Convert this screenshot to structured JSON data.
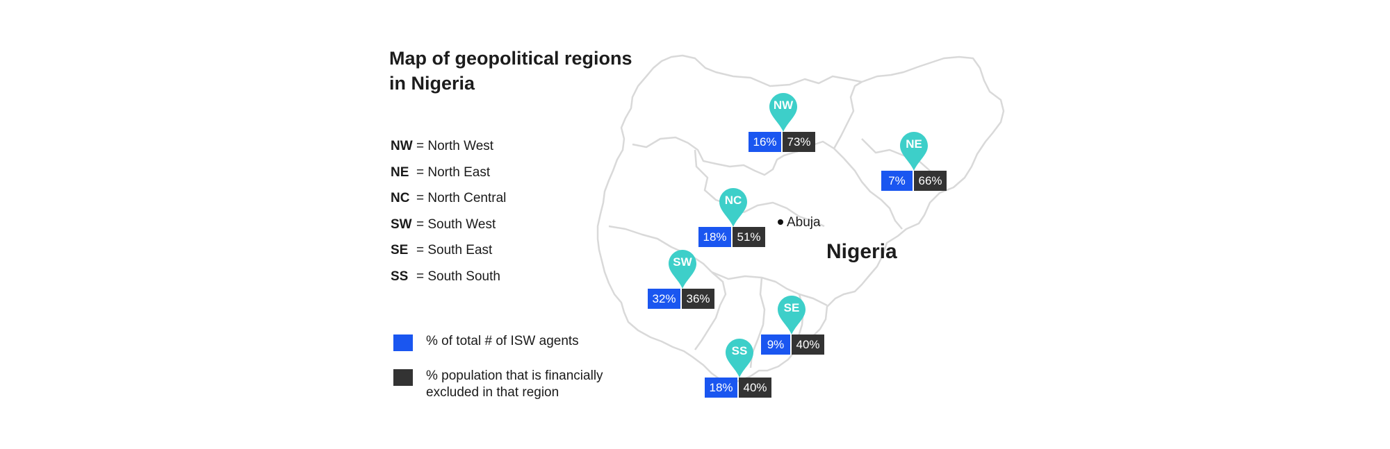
{
  "title": {
    "line1": "Map of geopolitical regions",
    "line2": "in Nigeria"
  },
  "legend_regions": [
    {
      "code": "NW",
      "desc": "= North West"
    },
    {
      "code": "NE",
      "desc": "= North East"
    },
    {
      "code": "NC",
      "desc": "= North Central"
    },
    {
      "code": "SW",
      "desc": "= South West"
    },
    {
      "code": "SE",
      "desc": "= South East"
    },
    {
      "code": "SS",
      "desc": "= South South"
    }
  ],
  "key": {
    "agents": {
      "label": "% of total # of ISW agents",
      "color": "#1a56f0"
    },
    "excluded": {
      "line1": "% population that is financially",
      "line2": "excluded in that region",
      "color": "#333333"
    }
  },
  "map": {
    "country_label": "Nigeria",
    "capital_label": "Abuja",
    "pin_color": "#3dcfc9",
    "regions": [
      {
        "code": "NW",
        "agents_pct": "16%",
        "excluded_pct": "73%"
      },
      {
        "code": "NE",
        "agents_pct": "7%",
        "excluded_pct": "66%"
      },
      {
        "code": "NC",
        "agents_pct": "18%",
        "excluded_pct": "51%"
      },
      {
        "code": "SW",
        "agents_pct": "32%",
        "excluded_pct": "36%"
      },
      {
        "code": "SE",
        "agents_pct": "9%",
        "excluded_pct": "40%"
      },
      {
        "code": "SS",
        "agents_pct": "18%",
        "excluded_pct": "40%"
      }
    ]
  }
}
